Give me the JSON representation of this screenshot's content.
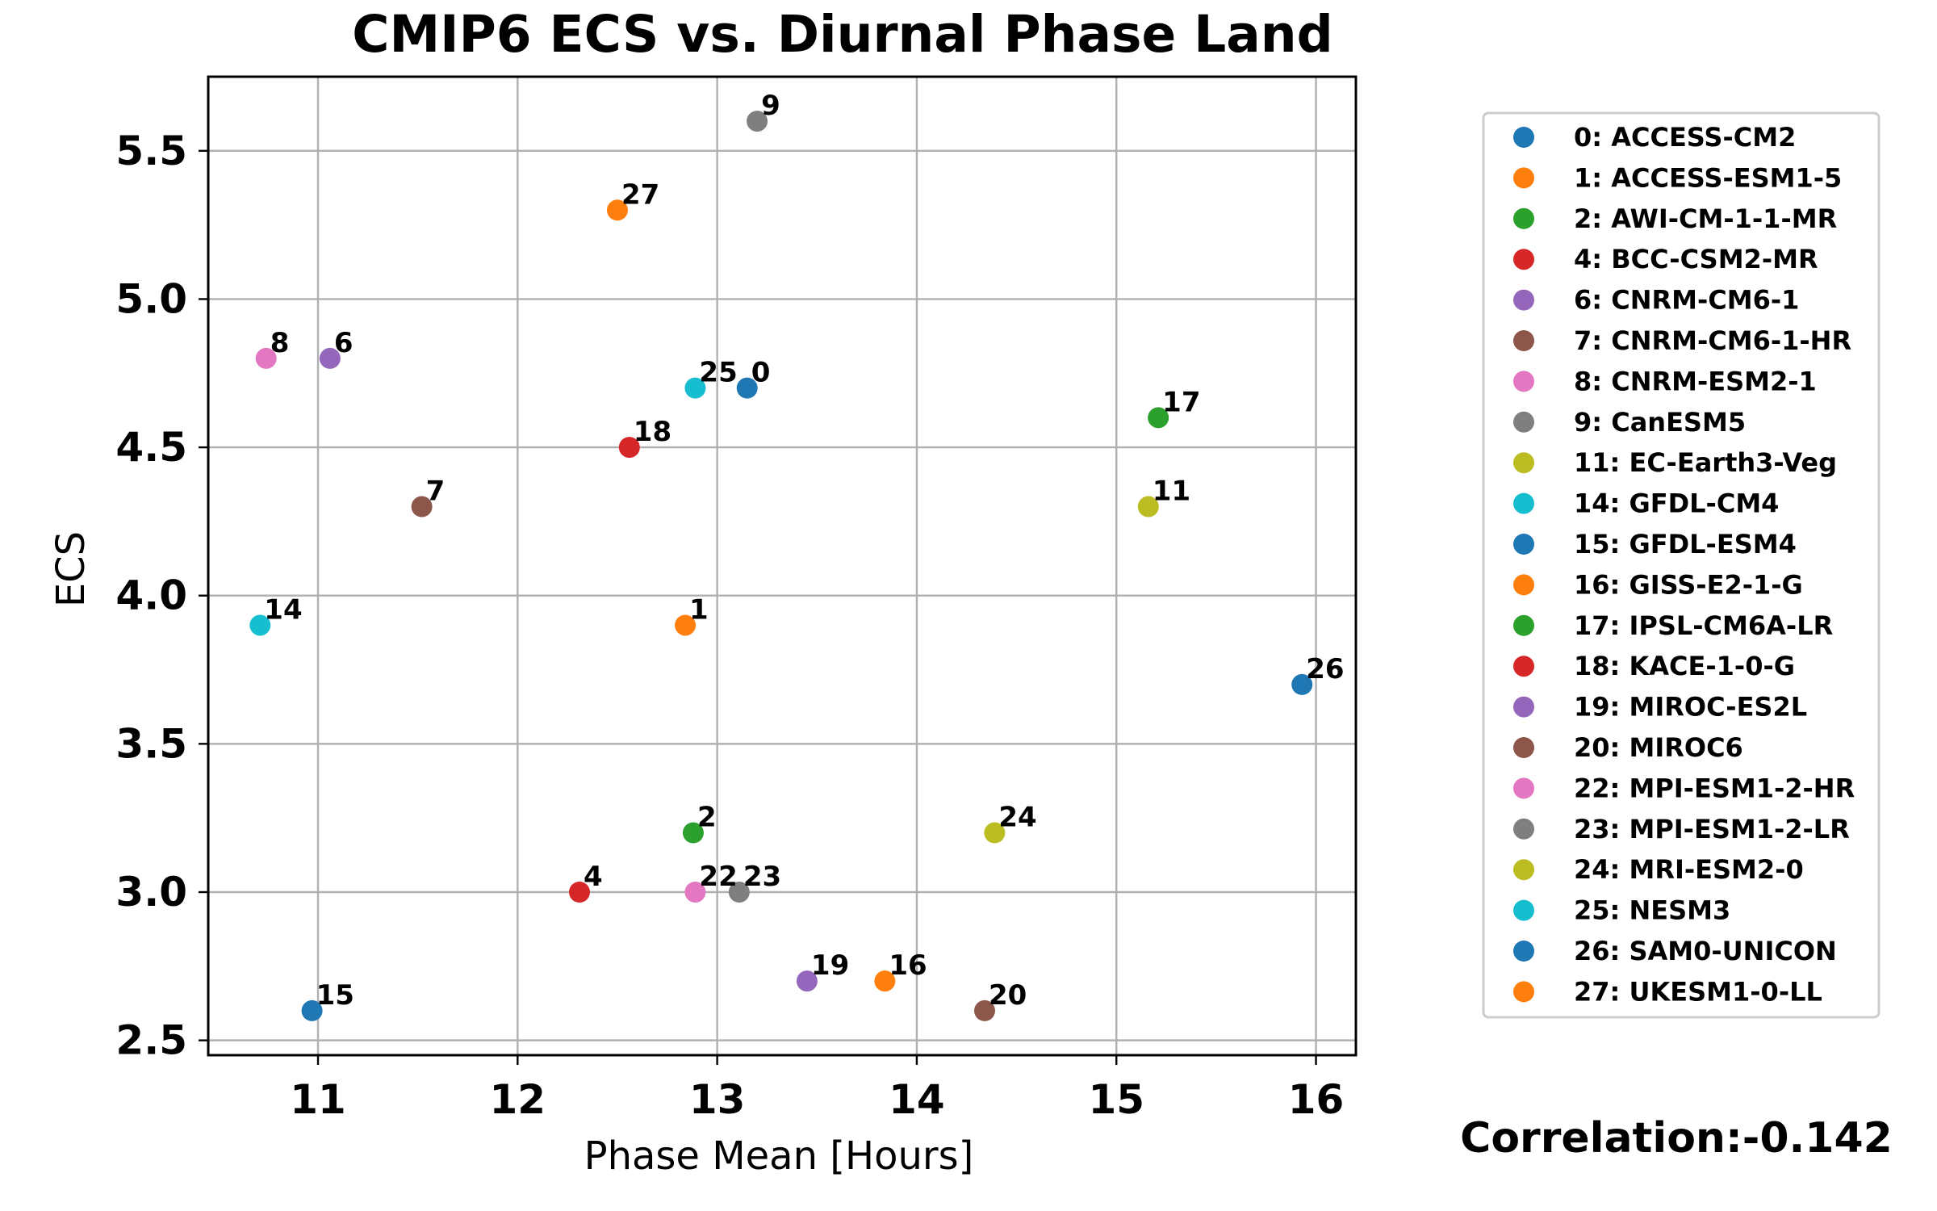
{
  "chart_data": {
    "type": "scatter",
    "title": "CMIP6 ECS vs. Diurnal Phase Land",
    "xlabel": "Phase Mean [Hours]",
    "ylabel": "ECS",
    "xlim": [
      10.45,
      16.2
    ],
    "ylim": [
      2.45,
      5.75
    ],
    "xticks": [
      11,
      12,
      13,
      14,
      15,
      16
    ],
    "yticks": [
      2.5,
      3.0,
      3.5,
      4.0,
      4.5,
      5.0,
      5.5
    ],
    "grid": true,
    "legend_position": "right",
    "correlation": "Correlation:-0.142",
    "points": [
      {
        "id": "0",
        "legend": "0: ACCESS-CM2",
        "x": 13.15,
        "y": 4.7,
        "color": "#1f77b4"
      },
      {
        "id": "1",
        "legend": "1: ACCESS-ESM1-5",
        "x": 12.84,
        "y": 3.9,
        "color": "#ff7f0e"
      },
      {
        "id": "2",
        "legend": "2: AWI-CM-1-1-MR",
        "x": 12.88,
        "y": 3.2,
        "color": "#2ca02c"
      },
      {
        "id": "4",
        "legend": "4: BCC-CSM2-MR",
        "x": 12.31,
        "y": 3.0,
        "color": "#d62728"
      },
      {
        "id": "6",
        "legend": "6: CNRM-CM6-1",
        "x": 11.06,
        "y": 4.8,
        "color": "#9467bd"
      },
      {
        "id": "7",
        "legend": "7: CNRM-CM6-1-HR",
        "x": 11.52,
        "y": 4.3,
        "color": "#8c564b"
      },
      {
        "id": "8",
        "legend": "8: CNRM-ESM2-1",
        "x": 10.74,
        "y": 4.8,
        "color": "#e377c2"
      },
      {
        "id": "9",
        "legend": "9: CanESM5",
        "x": 13.2,
        "y": 5.6,
        "color": "#7f7f7f"
      },
      {
        "id": "11",
        "legend": "11: EC-Earth3-Veg",
        "x": 15.16,
        "y": 4.3,
        "color": "#bcbd22"
      },
      {
        "id": "14",
        "legend": "14: GFDL-CM4",
        "x": 10.71,
        "y": 3.9,
        "color": "#17becf"
      },
      {
        "id": "15",
        "legend": "15: GFDL-ESM4",
        "x": 10.97,
        "y": 2.6,
        "color": "#1f77b4"
      },
      {
        "id": "16",
        "legend": "16: GISS-E2-1-G",
        "x": 13.84,
        "y": 2.7,
        "color": "#ff7f0e"
      },
      {
        "id": "17",
        "legend": "17: IPSL-CM6A-LR",
        "x": 15.21,
        "y": 4.6,
        "color": "#2ca02c"
      },
      {
        "id": "18",
        "legend": "18: KACE-1-0-G",
        "x": 12.56,
        "y": 4.5,
        "color": "#d62728"
      },
      {
        "id": "19",
        "legend": "19: MIROC-ES2L",
        "x": 13.45,
        "y": 2.7,
        "color": "#9467bd"
      },
      {
        "id": "20",
        "legend": "20: MIROC6",
        "x": 14.34,
        "y": 2.6,
        "color": "#8c564b"
      },
      {
        "id": "22",
        "legend": "22: MPI-ESM1-2-HR",
        "x": 12.89,
        "y": 3.0,
        "color": "#e377c2"
      },
      {
        "id": "23",
        "legend": "23: MPI-ESM1-2-LR",
        "x": 13.11,
        "y": 3.0,
        "color": "#7f7f7f"
      },
      {
        "id": "24",
        "legend": "24: MRI-ESM2-0",
        "x": 14.39,
        "y": 3.2,
        "color": "#bcbd22"
      },
      {
        "id": "25",
        "legend": "25: NESM3",
        "x": 12.89,
        "y": 4.7,
        "color": "#17becf"
      },
      {
        "id": "26",
        "legend": "26: SAM0-UNICON",
        "x": 15.93,
        "y": 3.7,
        "color": "#1f77b4"
      },
      {
        "id": "27",
        "legend": "27: UKESM1-0-LL",
        "x": 12.5,
        "y": 5.3,
        "color": "#ff7f0e"
      }
    ]
  }
}
